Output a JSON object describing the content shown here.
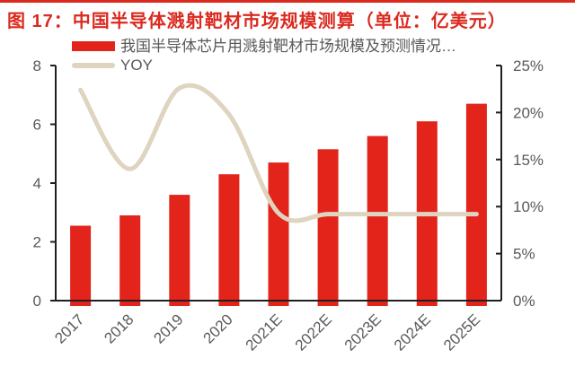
{
  "title": {
    "text": "图 17：中国半导体溅射靶材市场规模测算（单位：亿美元）"
  },
  "colors": {
    "accent_red": "#DB2A1F",
    "bar_red": "#E2241B",
    "line_tan": "#DED4BF",
    "text_gray": "#595959",
    "axis_black": "#1F1F1F",
    "background": "#FFFFFF"
  },
  "legend": {
    "bar_label": "我国半导体芯片用溅射靶材市场规模及预测情况…",
    "line_label": "YOY"
  },
  "chart_data": {
    "type": "bar+line",
    "title": "中国半导体溅射靶材市场规模测算（单位：亿美元）",
    "categories": [
      "2017",
      "2018",
      "2019",
      "2020",
      "2021E",
      "2022E",
      "2023E",
      "2024E",
      "2025E"
    ],
    "series": [
      {
        "name": "我国半导体芯片用溅射靶材市场规模及预测情况…",
        "type": "bar",
        "axis": "left",
        "unit": "亿美元",
        "color": "#E2241B",
        "values": [
          2.55,
          2.9,
          3.6,
          4.3,
          4.7,
          5.15,
          5.6,
          6.1,
          6.7
        ]
      },
      {
        "name": "YOY",
        "type": "line",
        "axis": "right",
        "unit": "%",
        "color": "#DED4BF",
        "smooth": true,
        "values": [
          22.4,
          14.0,
          22.6,
          19.8,
          9.3,
          9.2,
          9.2,
          9.2,
          9.2
        ]
      }
    ],
    "left_axis": {
      "min": 0,
      "max": 8,
      "ticks": [
        0,
        2,
        4,
        6,
        8
      ]
    },
    "right_axis": {
      "min": 0,
      "max": 25,
      "ticks": [
        0,
        5,
        10,
        15,
        20,
        25
      ],
      "suffix": "%"
    },
    "grid": false,
    "legend_position": "top-left",
    "x_label_rotation": -45
  }
}
